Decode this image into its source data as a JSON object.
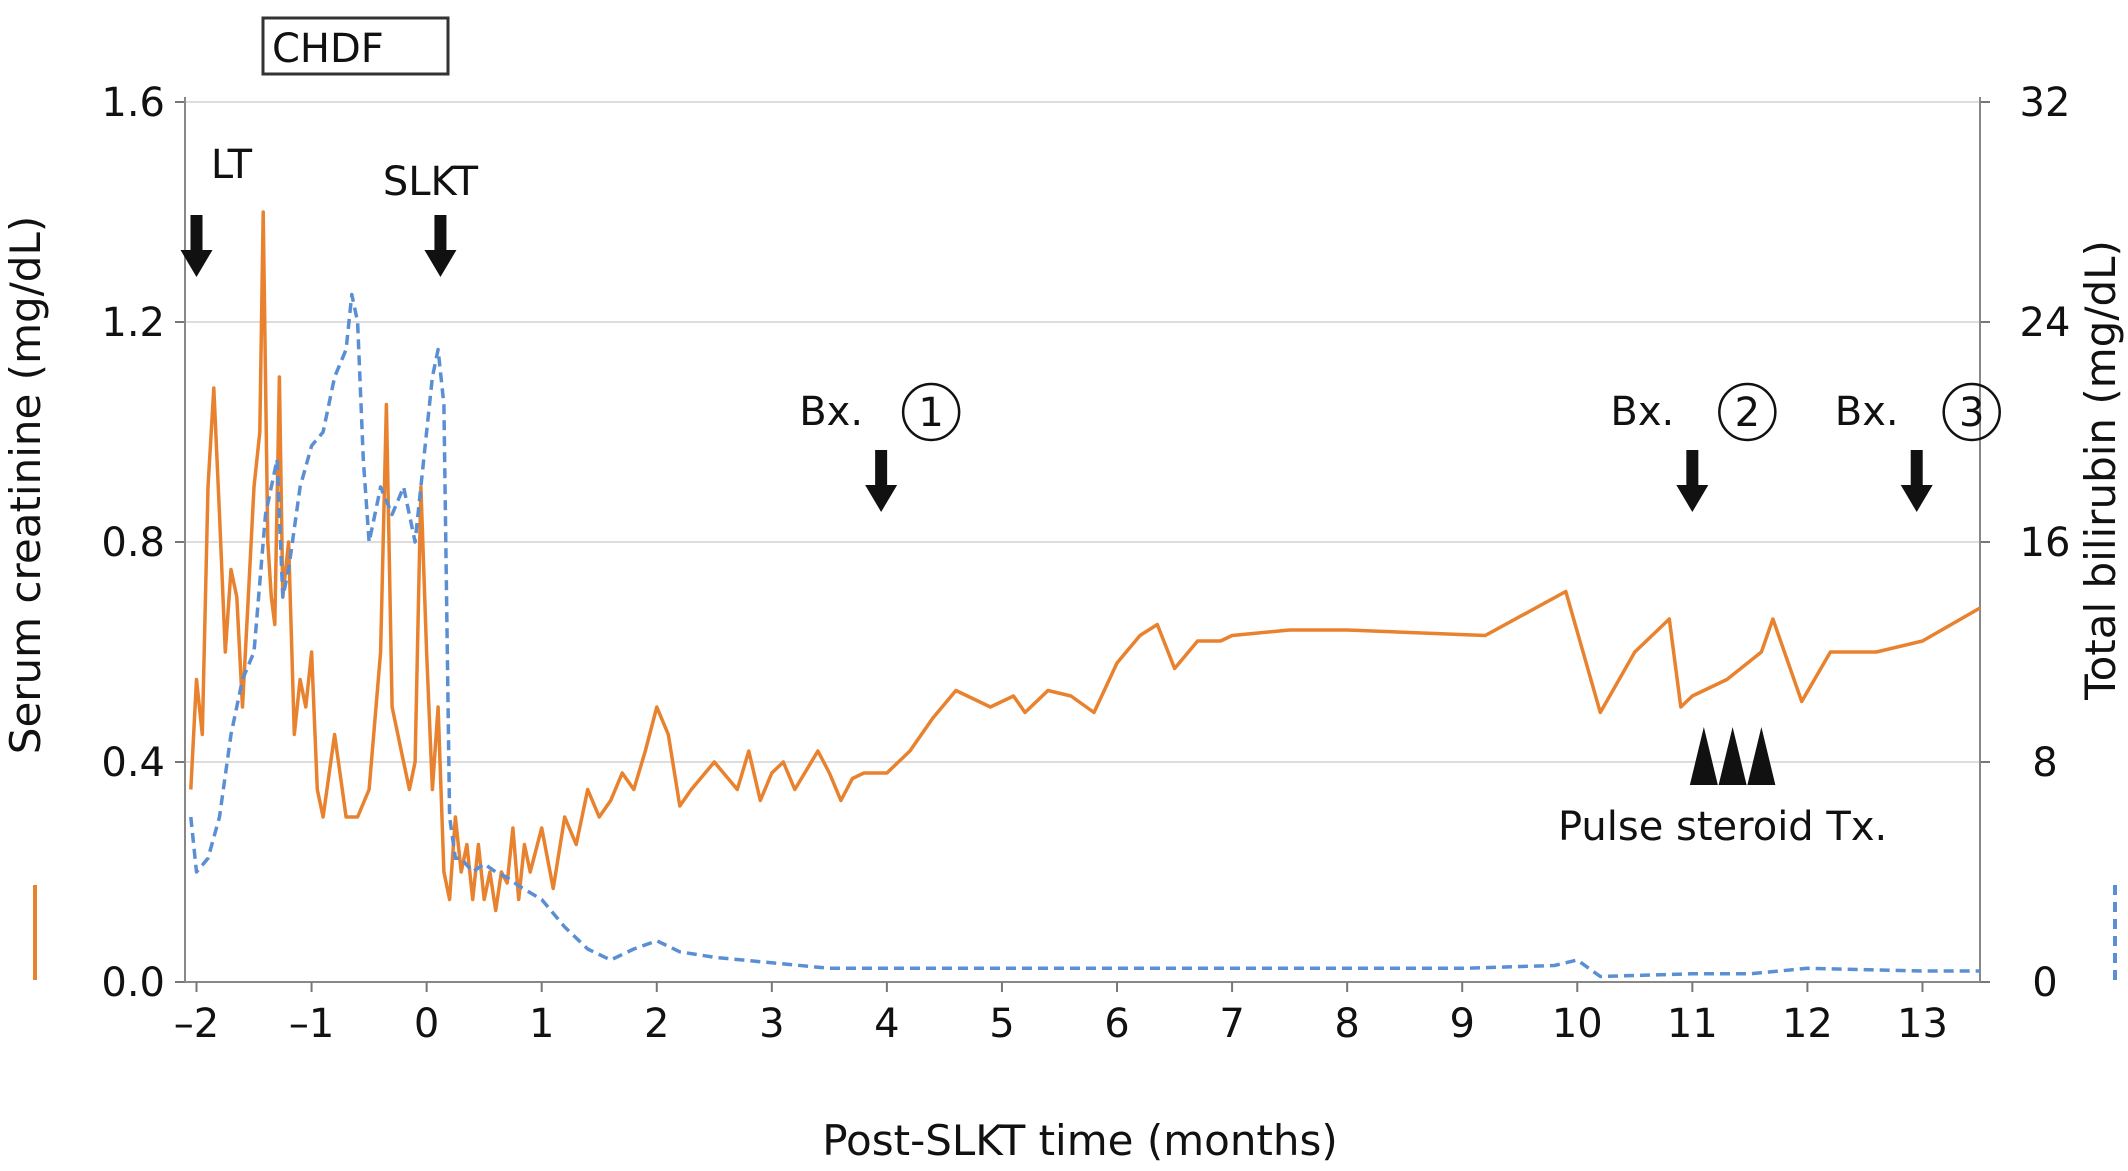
{
  "chart_data": {
    "type": "line",
    "xlabel": "Post-SLKT time (months)",
    "xlim": [
      -2.1,
      13.5
    ],
    "x_ticks": [
      "–2",
      "–1",
      "0",
      "1",
      "2",
      "3",
      "4",
      "5",
      "6",
      "7",
      "8",
      "9",
      "10",
      "11",
      "12",
      "13"
    ],
    "y_left": {
      "label": "Serum creatinine (mg/dL)",
      "lim": [
        0,
        1.6
      ],
      "ticks": [
        "0.0",
        "0.4",
        "0.8",
        "1.2",
        "1.6"
      ]
    },
    "y_right": {
      "label": "Total bilirubin (mg/dL)",
      "lim": [
        0,
        32
      ],
      "ticks": [
        "0",
        "8",
        "16",
        "24",
        "32"
      ]
    },
    "grid": true,
    "series": [
      {
        "axis": "left",
        "style": "solid",
        "color": "#e8822e",
        "x": [
          -2.05,
          -2.0,
          -1.95,
          -1.9,
          -1.85,
          -1.8,
          -1.75,
          -1.7,
          -1.65,
          -1.6,
          -1.55,
          -1.5,
          -1.45,
          -1.42,
          -1.38,
          -1.35,
          -1.32,
          -1.28,
          -1.25,
          -1.2,
          -1.15,
          -1.1,
          -1.05,
          -1.0,
          -0.95,
          -0.9,
          -0.8,
          -0.7,
          -0.6,
          -0.5,
          -0.4,
          -0.35,
          -0.3,
          -0.2,
          -0.15,
          -0.1,
          -0.05,
          0.0,
          0.05,
          0.1,
          0.15,
          0.2,
          0.25,
          0.3,
          0.35,
          0.4,
          0.45,
          0.5,
          0.55,
          0.6,
          0.65,
          0.7,
          0.75,
          0.8,
          0.85,
          0.9,
          1.0,
          1.1,
          1.2,
          1.3,
          1.4,
          1.5,
          1.6,
          1.7,
          1.8,
          1.9,
          2.0,
          2.1,
          2.2,
          2.3,
          2.5,
          2.7,
          2.8,
          2.9,
          3.0,
          3.1,
          3.2,
          3.4,
          3.5,
          3.6,
          3.7,
          3.8,
          4.0,
          4.2,
          4.4,
          4.6,
          4.7,
          4.9,
          5.1,
          5.2,
          5.4,
          5.6,
          5.8,
          6.0,
          6.2,
          6.35,
          6.5,
          6.7,
          6.9,
          7.0,
          7.5,
          8.0,
          9.2,
          9.9,
          10.2,
          10.5,
          10.8,
          10.9,
          11.0,
          11.3,
          11.6,
          11.7,
          11.95,
          12.2,
          12.6,
          13.0,
          13.5
        ],
        "values": [
          0.35,
          0.55,
          0.45,
          0.9,
          1.08,
          0.85,
          0.6,
          0.75,
          0.7,
          0.5,
          0.7,
          0.9,
          1.0,
          1.4,
          0.8,
          0.7,
          0.65,
          1.1,
          0.7,
          0.8,
          0.45,
          0.55,
          0.5,
          0.6,
          0.35,
          0.3,
          0.45,
          0.3,
          0.3,
          0.35,
          0.6,
          1.05,
          0.5,
          0.4,
          0.35,
          0.4,
          0.9,
          0.6,
          0.35,
          0.5,
          0.2,
          0.15,
          0.3,
          0.2,
          0.25,
          0.15,
          0.25,
          0.15,
          0.2,
          0.13,
          0.2,
          0.18,
          0.28,
          0.15,
          0.25,
          0.2,
          0.28,
          0.17,
          0.3,
          0.25,
          0.35,
          0.3,
          0.33,
          0.38,
          0.35,
          0.42,
          0.5,
          0.45,
          0.32,
          0.35,
          0.4,
          0.35,
          0.42,
          0.33,
          0.38,
          0.4,
          0.35,
          0.42,
          0.38,
          0.33,
          0.37,
          0.38,
          0.38,
          0.42,
          0.48,
          0.53,
          0.52,
          0.5,
          0.52,
          0.49,
          0.53,
          0.52,
          0.49,
          0.58,
          0.63,
          0.65,
          0.57,
          0.62,
          0.62,
          0.63,
          0.64,
          0.64,
          0.63,
          0.71,
          0.49,
          0.6,
          0.66,
          0.5,
          0.52,
          0.55,
          0.6,
          0.66,
          0.51,
          0.6,
          0.6,
          0.62,
          0.68
        ]
      },
      {
        "axis": "right",
        "style": "dashed",
        "color": "#5b8fd4",
        "x": [
          -2.05,
          -2.0,
          -1.9,
          -1.8,
          -1.7,
          -1.6,
          -1.5,
          -1.4,
          -1.3,
          -1.25,
          -1.2,
          -1.1,
          -1.0,
          -0.9,
          -0.8,
          -0.7,
          -0.65,
          -0.6,
          -0.55,
          -0.5,
          -0.45,
          -0.4,
          -0.3,
          -0.2,
          -0.1,
          0.0,
          0.05,
          0.1,
          0.15,
          0.2,
          0.25,
          0.3,
          0.4,
          0.5,
          0.6,
          0.7,
          0.8,
          1.0,
          1.2,
          1.4,
          1.6,
          1.8,
          2.0,
          2.2,
          2.5,
          3.0,
          3.5,
          4.0,
          5.0,
          6.0,
          7.0,
          8.0,
          9.0,
          9.8,
          10.0,
          10.2,
          11.0,
          11.5,
          12.0,
          13.0,
          13.5
        ],
        "values": [
          6.0,
          4.0,
          4.5,
          6.0,
          9.0,
          11.0,
          12.0,
          17.0,
          19.0,
          14.0,
          15.0,
          18.0,
          19.5,
          20.0,
          22.0,
          23.0,
          25.0,
          24.0,
          19.0,
          16.0,
          17.0,
          18.0,
          17.0,
          18.0,
          16.0,
          20.0,
          22.0,
          23.0,
          21.0,
          6.0,
          4.5,
          4.5,
          4.0,
          4.3,
          4.0,
          3.8,
          3.5,
          3.0,
          2.0,
          1.2,
          0.8,
          1.2,
          1.5,
          1.1,
          0.9,
          0.7,
          0.5,
          0.5,
          0.5,
          0.5,
          0.5,
          0.5,
          0.5,
          0.6,
          0.8,
          0.2,
          0.3,
          0.3,
          0.5,
          0.4,
          0.4
        ]
      }
    ],
    "annotations": {
      "box": "CHDF",
      "arrows": [
        {
          "label": "LT",
          "x": -2.0,
          "num": ""
        },
        {
          "label": "SLKT",
          "x": 0.12,
          "num": ""
        },
        {
          "label": "Bx.",
          "x": 3.95,
          "num": "1"
        },
        {
          "label": "Bx.",
          "x": 11.0,
          "num": "2"
        },
        {
          "label": "Bx.",
          "x": 12.95,
          "num": "3"
        }
      ],
      "steroid_label": "Pulse steroid Tx.",
      "steroid_x": [
        11.1,
        11.35,
        11.6
      ]
    }
  }
}
